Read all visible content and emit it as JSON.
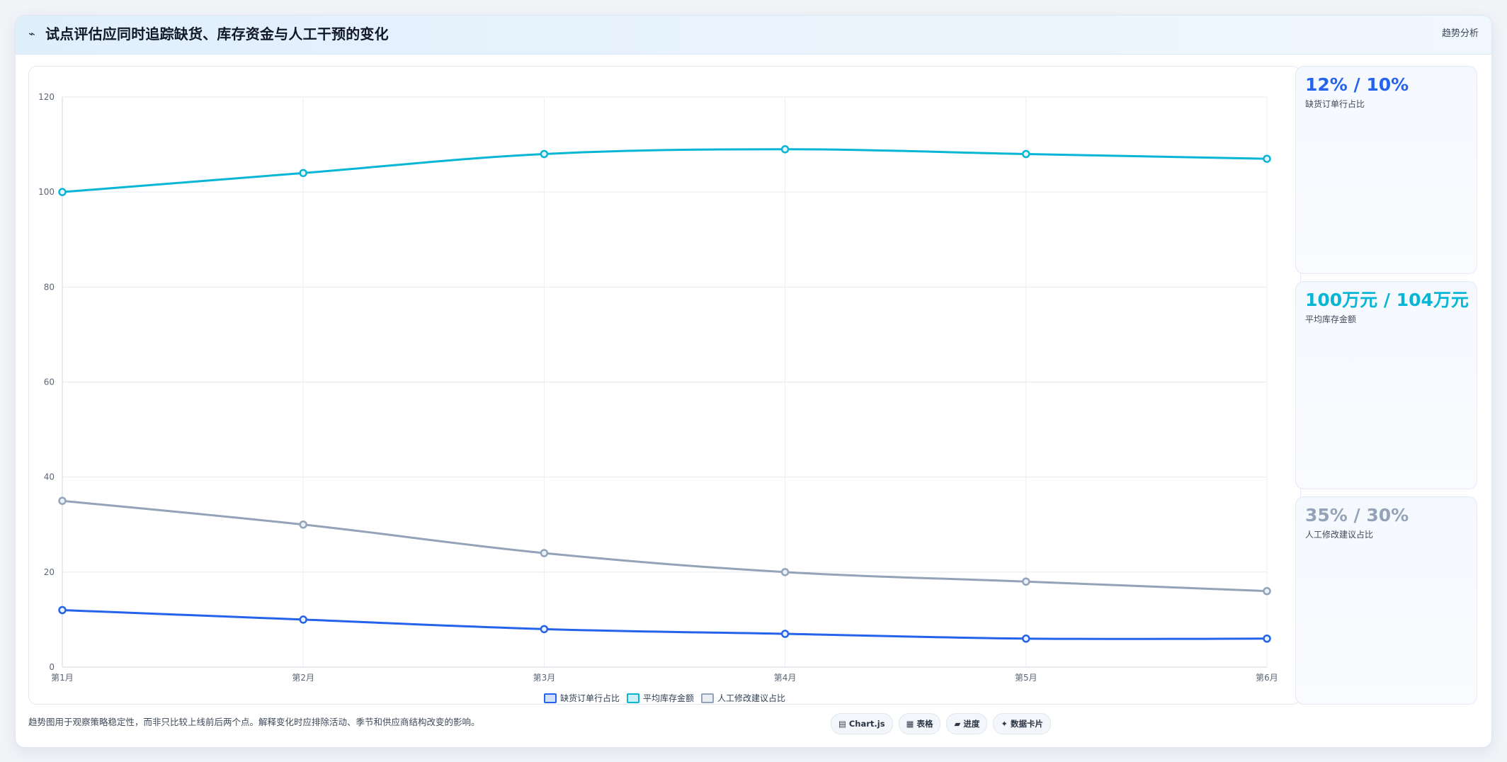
{
  "header": {
    "icon": "trend-line-icon",
    "icon_glyph": "⌁",
    "title": "试点评估应同时追踪缺货、库存资金与人工干预的变化",
    "right_label": "趋势分析"
  },
  "chart_data": {
    "type": "line",
    "categories": [
      "第1月",
      "第2月",
      "第3月",
      "第4月",
      "第5月",
      "第6月"
    ],
    "series": [
      {
        "name": "缺货订单行占比",
        "values": [
          12,
          10,
          8,
          7,
          6,
          6
        ],
        "color": "#2563eb"
      },
      {
        "name": "平均库存金额",
        "values": [
          100,
          104,
          108,
          109,
          108,
          107
        ],
        "color": "#06b6d4"
      },
      {
        "name": "人工修改建议占比",
        "values": [
          35,
          30,
          24,
          20,
          18,
          16
        ],
        "color": "#94a3b8"
      }
    ],
    "ylim": [
      0,
      120
    ],
    "yticks": [
      0,
      20,
      40,
      60,
      80,
      100,
      120
    ],
    "grid": true,
    "legend_position": "bottom-center"
  },
  "stats": [
    {
      "value": "12% / 10%",
      "label": "缺货订单行占比",
      "color": "#2563eb"
    },
    {
      "value": "100万元 / 104万元",
      "label": "平均库存金额",
      "color": "#06b6d4"
    },
    {
      "value": "35% / 30%",
      "label": "人工修改建议占比",
      "color": "#94a3b8"
    }
  ],
  "footer": {
    "note": "趋势图用于观察策略稳定性，而非只比较上线前后两个点。解释变化时应排除活动、季节和供应商结构改变的影响。",
    "tags": [
      {
        "label": "▤ Chart.js",
        "icon": "chart-icon"
      },
      {
        "label": "▦ 表格",
        "icon": "table-icon"
      },
      {
        "label": "▰ 进度",
        "icon": "progress-icon"
      },
      {
        "label": "✦ 数据卡片",
        "icon": "sparkle-icon"
      }
    ]
  }
}
